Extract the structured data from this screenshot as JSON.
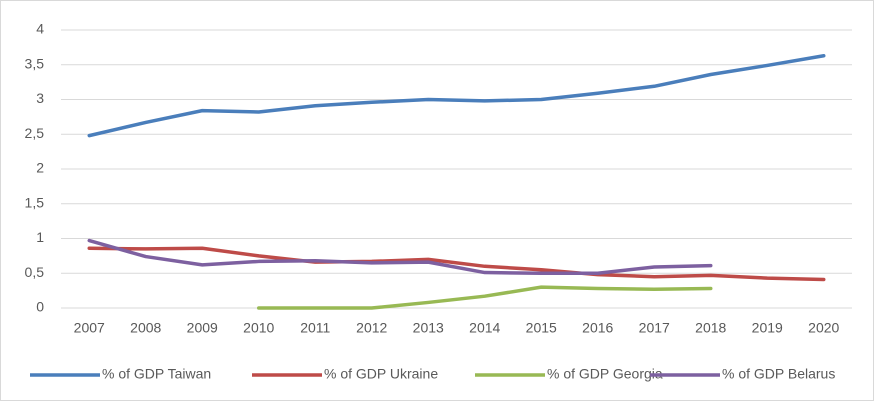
{
  "chart_data": {
    "type": "line",
    "categories": [
      "2007",
      "2008",
      "2009",
      "2010",
      "2011",
      "2012",
      "2013",
      "2014",
      "2015",
      "2016",
      "2017",
      "2018",
      "2019",
      "2020"
    ],
    "series": [
      {
        "name": "% of GDP Taiwan",
        "color": "#4a7ebb",
        "values": [
          2.48,
          2.67,
          2.84,
          2.82,
          2.91,
          2.96,
          3.0,
          2.98,
          3.0,
          3.09,
          3.19,
          3.36,
          3.49,
          3.63
        ]
      },
      {
        "name": "% of GDP Ukraine",
        "color": "#be4b48",
        "values": [
          0.86,
          0.85,
          0.86,
          0.75,
          0.66,
          0.67,
          0.7,
          0.6,
          0.55,
          0.48,
          0.45,
          0.47,
          0.43,
          0.41
        ]
      },
      {
        "name": "% of GDP Georgia",
        "color": "#98b954",
        "values": [
          null,
          null,
          null,
          0,
          0,
          0,
          0.08,
          0.17,
          0.3,
          0.28,
          0.27,
          0.28,
          null,
          null
        ]
      },
      {
        "name": "% of GDP Belarus",
        "color": "#7d60a0",
        "values": [
          0.97,
          0.74,
          0.62,
          0.67,
          0.68,
          0.65,
          0.66,
          0.51,
          0.5,
          0.5,
          0.59,
          0.61,
          null,
          null
        ]
      }
    ],
    "ylim": [
      0,
      4
    ],
    "yticks": [
      0,
      {
        "value": 0.5,
        "label": "0,5"
      },
      1,
      {
        "value": 1.5,
        "label": "1,5"
      },
      2,
      {
        "value": 2.5,
        "label": "2,5"
      },
      3,
      {
        "value": 3.5,
        "label": "3,5"
      },
      4
    ],
    "grid": true,
    "legend": "bottom"
  }
}
